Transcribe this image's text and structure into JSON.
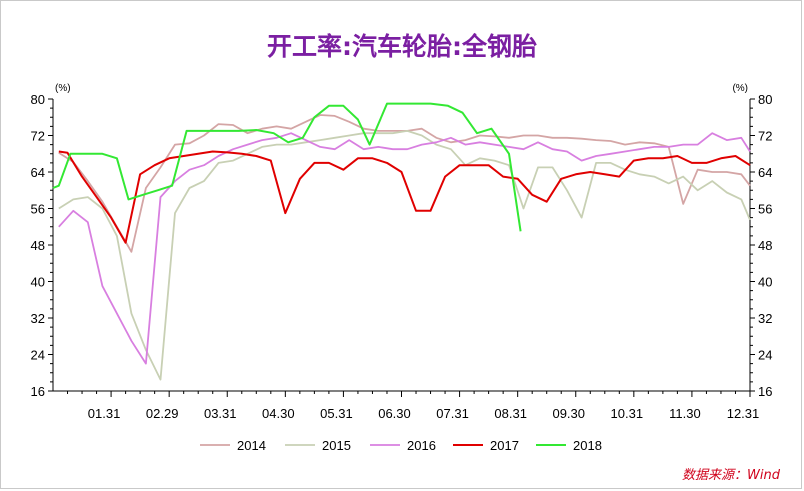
{
  "chart_data": {
    "type": "line",
    "title": "开工率:汽车轮胎:全钢胎",
    "title_color": "#7b1fa2",
    "y_unit": "(%)",
    "ylim": [
      16,
      80
    ],
    "yticks": [
      16,
      24,
      32,
      40,
      48,
      56,
      64,
      72,
      80
    ],
    "xlim": [
      0,
      12
    ],
    "xtick_labels": [
      "01.31",
      "02.29",
      "03.31",
      "04.30",
      "05.31",
      "06.30",
      "07.31",
      "08.31",
      "09.30",
      "10.31",
      "11.30",
      "12.31"
    ],
    "xtick_positions": [
      1,
      2,
      3,
      4,
      5,
      6,
      7,
      8,
      9,
      10,
      11,
      12
    ],
    "grid": false,
    "legend_position": "bottom",
    "source": "数据来源：Wind",
    "series": [
      {
        "name": "2014",
        "color": "#d4a5a5",
        "x": [
          0.1,
          0.35,
          0.6,
          0.85,
          1.1,
          1.35,
          1.6,
          1.85,
          2.1,
          2.35,
          2.6,
          2.85,
          3.1,
          3.35,
          3.6,
          3.85,
          4.1,
          4.35,
          4.6,
          4.85,
          5.1,
          5.35,
          5.6,
          5.85,
          6.1,
          6.35,
          6.6,
          6.85,
          7.1,
          7.35,
          7.6,
          7.85,
          8.1,
          8.35,
          8.6,
          8.85,
          9.1,
          9.35,
          9.6,
          9.85,
          10.1,
          10.35,
          10.6,
          10.85,
          11.1,
          11.35,
          11.6,
          11.85,
          12.0
        ],
        "y": [
          68.2,
          66.2,
          62.0,
          57.5,
          52.0,
          46.5,
          60.5,
          65.0,
          70.0,
          70.3,
          72.0,
          74.5,
          74.3,
          72.5,
          73.5,
          74.0,
          73.5,
          75.0,
          76.5,
          76.3,
          75.0,
          73.5,
          73.0,
          73.0,
          73.0,
          73.5,
          71.5,
          70.5,
          71.0,
          72.0,
          71.8,
          71.5,
          72.0,
          72.0,
          71.5,
          71.5,
          71.3,
          71.0,
          70.8,
          70.0,
          70.5,
          70.3,
          69.5,
          57.0,
          64.5,
          64.0,
          64.0,
          63.5,
          61.0
        ]
      },
      {
        "name": "2015",
        "color": "#c8d0b4",
        "x": [
          0.1,
          0.35,
          0.6,
          0.85,
          1.1,
          1.35,
          1.6,
          1.85,
          2.1,
          2.35,
          2.6,
          2.85,
          3.1,
          3.35,
          3.6,
          3.85,
          4.1,
          4.35,
          4.6,
          4.85,
          5.1,
          5.35,
          5.6,
          5.85,
          6.1,
          6.35,
          6.6,
          6.85,
          7.1,
          7.35,
          7.6,
          7.85,
          8.1,
          8.35,
          8.6,
          8.85,
          9.1,
          9.35,
          9.6,
          9.85,
          10.1,
          10.35,
          10.6,
          10.85,
          11.1,
          11.35,
          11.6,
          11.85,
          12.0
        ],
        "y": [
          56.0,
          58.0,
          58.5,
          56.0,
          50.0,
          33.0,
          25.0,
          18.5,
          55.0,
          60.5,
          62.0,
          66.0,
          66.5,
          68.0,
          69.5,
          70.0,
          70.0,
          70.5,
          71.0,
          71.5,
          72.0,
          72.5,
          72.5,
          72.5,
          73.0,
          72.0,
          70.0,
          69.0,
          65.5,
          67.0,
          66.5,
          65.5,
          56.0,
          65.0,
          65.0,
          60.0,
          54.0,
          66.0,
          66.0,
          64.5,
          63.5,
          63.0,
          61.5,
          63.0,
          60.0,
          62.0,
          59.5,
          58.0,
          53.5
        ]
      },
      {
        "name": "2016",
        "color": "#d87fe0",
        "x": [
          0.1,
          0.35,
          0.6,
          0.85,
          1.1,
          1.35,
          1.6,
          1.85,
          2.1,
          2.35,
          2.6,
          2.85,
          3.1,
          3.35,
          3.6,
          3.85,
          4.1,
          4.35,
          4.6,
          4.85,
          5.1,
          5.35,
          5.6,
          5.85,
          6.1,
          6.35,
          6.6,
          6.85,
          7.1,
          7.35,
          7.6,
          7.85,
          8.1,
          8.35,
          8.6,
          8.85,
          9.1,
          9.35,
          9.6,
          9.85,
          10.1,
          10.35,
          10.6,
          10.85,
          11.1,
          11.35,
          11.6,
          11.85,
          12.0
        ],
        "y": [
          52.0,
          55.5,
          53.0,
          39.0,
          33.0,
          27.0,
          22.0,
          58.5,
          62.0,
          64.5,
          65.5,
          67.5,
          69.0,
          70.0,
          71.0,
          71.5,
          72.5,
          71.0,
          69.5,
          69.0,
          71.0,
          69.0,
          69.5,
          69.0,
          69.0,
          70.0,
          70.5,
          71.5,
          70.0,
          70.5,
          70.0,
          69.5,
          69.0,
          70.5,
          69.0,
          68.5,
          66.5,
          67.5,
          68.0,
          68.5,
          69.0,
          69.5,
          69.5,
          70.0,
          70.0,
          72.5,
          71.0,
          71.5,
          68.5
        ]
      },
      {
        "name": "2017",
        "color": "#e00000",
        "x": [
          0.1,
          0.25,
          0.5,
          0.75,
          1.0,
          1.25,
          1.5,
          1.75,
          2.0,
          2.25,
          2.5,
          2.75,
          3.0,
          3.25,
          3.5,
          3.75,
          4.0,
          4.25,
          4.5,
          4.75,
          5.0,
          5.25,
          5.5,
          5.75,
          6.0,
          6.25,
          6.5,
          6.75,
          7.0,
          7.25,
          7.5,
          7.75,
          8.0,
          8.25,
          8.5,
          8.75,
          9.0,
          9.25,
          9.5,
          9.75,
          10.0,
          10.25,
          10.5,
          10.75,
          11.0,
          11.25,
          11.5,
          11.75,
          12.0
        ],
        "y": [
          68.5,
          68.2,
          63.0,
          58.5,
          54.0,
          48.5,
          63.5,
          65.5,
          67.0,
          67.5,
          68.0,
          68.5,
          68.3,
          68.0,
          67.5,
          66.5,
          55.0,
          62.5,
          66.0,
          66.0,
          64.5,
          67.0,
          67.0,
          66.0,
          64.0,
          55.5,
          55.5,
          63.0,
          65.5,
          65.5,
          65.5,
          63.0,
          62.5,
          59.0,
          57.5,
          62.5,
          63.5,
          64.0,
          63.5,
          63.0,
          66.5,
          67.0,
          67.0,
          67.5,
          66.0,
          66.0,
          67.0,
          67.5,
          65.5
        ]
      },
      {
        "name": "2018",
        "color": "#33e833",
        "x": [
          0.0,
          0.1,
          0.3,
          0.55,
          0.85,
          1.1,
          1.3,
          1.55,
          1.8,
          2.05,
          2.3,
          2.6,
          2.9,
          3.2,
          3.5,
          3.8,
          4.05,
          4.3,
          4.5,
          4.75,
          5.0,
          5.25,
          5.45,
          5.75,
          6.0,
          6.25,
          6.5,
          6.8,
          7.05,
          7.3,
          7.55,
          7.85,
          8.05
        ],
        "y": [
          60.5,
          61.0,
          68.0,
          68.0,
          68.0,
          67.0,
          58.0,
          59.0,
          60.0,
          61.0,
          73.0,
          73.0,
          73.0,
          73.0,
          73.2,
          72.5,
          70.5,
          71.5,
          76.0,
          78.5,
          78.5,
          75.5,
          70.0,
          79.0,
          79.0,
          79.0,
          79.0,
          78.5,
          77.0,
          72.5,
          73.5,
          68.0,
          51.0
        ]
      }
    ]
  }
}
